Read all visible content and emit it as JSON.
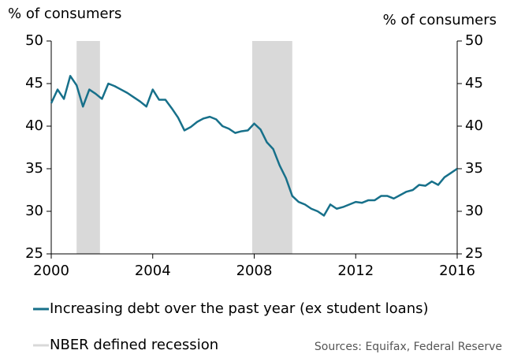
{
  "chart_data": {
    "type": "line",
    "y_label": "% of consumers",
    "y2_label": "% of consumers",
    "x": [
      2000,
      2000.25,
      2000.5,
      2000.75,
      2001,
      2001.25,
      2001.5,
      2001.75,
      2002,
      2002.25,
      2002.5,
      2002.75,
      2003,
      2003.25,
      2003.5,
      2003.75,
      2004,
      2004.25,
      2004.5,
      2004.75,
      2005,
      2005.25,
      2005.5,
      2005.75,
      2006,
      2006.25,
      2006.5,
      2006.75,
      2007,
      2007.25,
      2007.5,
      2007.75,
      2008,
      2008.25,
      2008.5,
      2008.75,
      2009,
      2009.25,
      2009.5,
      2009.75,
      2010,
      2010.25,
      2010.5,
      2010.75,
      2011,
      2011.25,
      2011.5,
      2011.75,
      2012,
      2012.25,
      2012.5,
      2012.75,
      2013,
      2013.25,
      2013.5,
      2013.75,
      2014,
      2014.25,
      2014.5,
      2014.75,
      2015,
      2015.25,
      2015.5,
      2015.75,
      2016
    ],
    "series": [
      {
        "name": "Increasing debt over the past year (ex student loans)",
        "color": "#17708a",
        "values": [
          42.7,
          44.3,
          43.2,
          45.9,
          44.8,
          42.3,
          44.3,
          43.8,
          43.2,
          45.0,
          44.7,
          44.3,
          43.9,
          43.4,
          42.9,
          42.3,
          44.3,
          43.1,
          43.1,
          42.1,
          41.0,
          39.5,
          39.9,
          40.5,
          40.9,
          41.1,
          40.8,
          40.0,
          39.7,
          39.2,
          39.4,
          39.5,
          40.3,
          39.6,
          38.1,
          37.3,
          35.4,
          33.9,
          31.8,
          31.1,
          30.8,
          30.3,
          30.0,
          29.5,
          30.8,
          30.3,
          30.5,
          30.8,
          31.1,
          31.0,
          31.3,
          31.3,
          31.8,
          31.8,
          31.5,
          31.9,
          32.3,
          32.5,
          33.1,
          33.0,
          33.5,
          33.1,
          34.0,
          34.5,
          35.0
        ]
      }
    ],
    "recession": {
      "name": "NBER defined recession",
      "color": "#d9d9d9",
      "periods": [
        [
          2001,
          2001.92
        ],
        [
          2007.92,
          2009.5
        ]
      ]
    },
    "xlim": [
      2000,
      2016
    ],
    "xticks": [
      2000,
      2004,
      2008,
      2012,
      2016
    ],
    "ylim": [
      25,
      50
    ],
    "yticks": [
      25,
      30,
      35,
      40,
      45,
      50
    ],
    "y2lim": [
      25,
      50
    ],
    "y2ticks": [
      25,
      30,
      35,
      40,
      45,
      50
    ],
    "source": "Sources: Equifax, Federal Reserve"
  }
}
